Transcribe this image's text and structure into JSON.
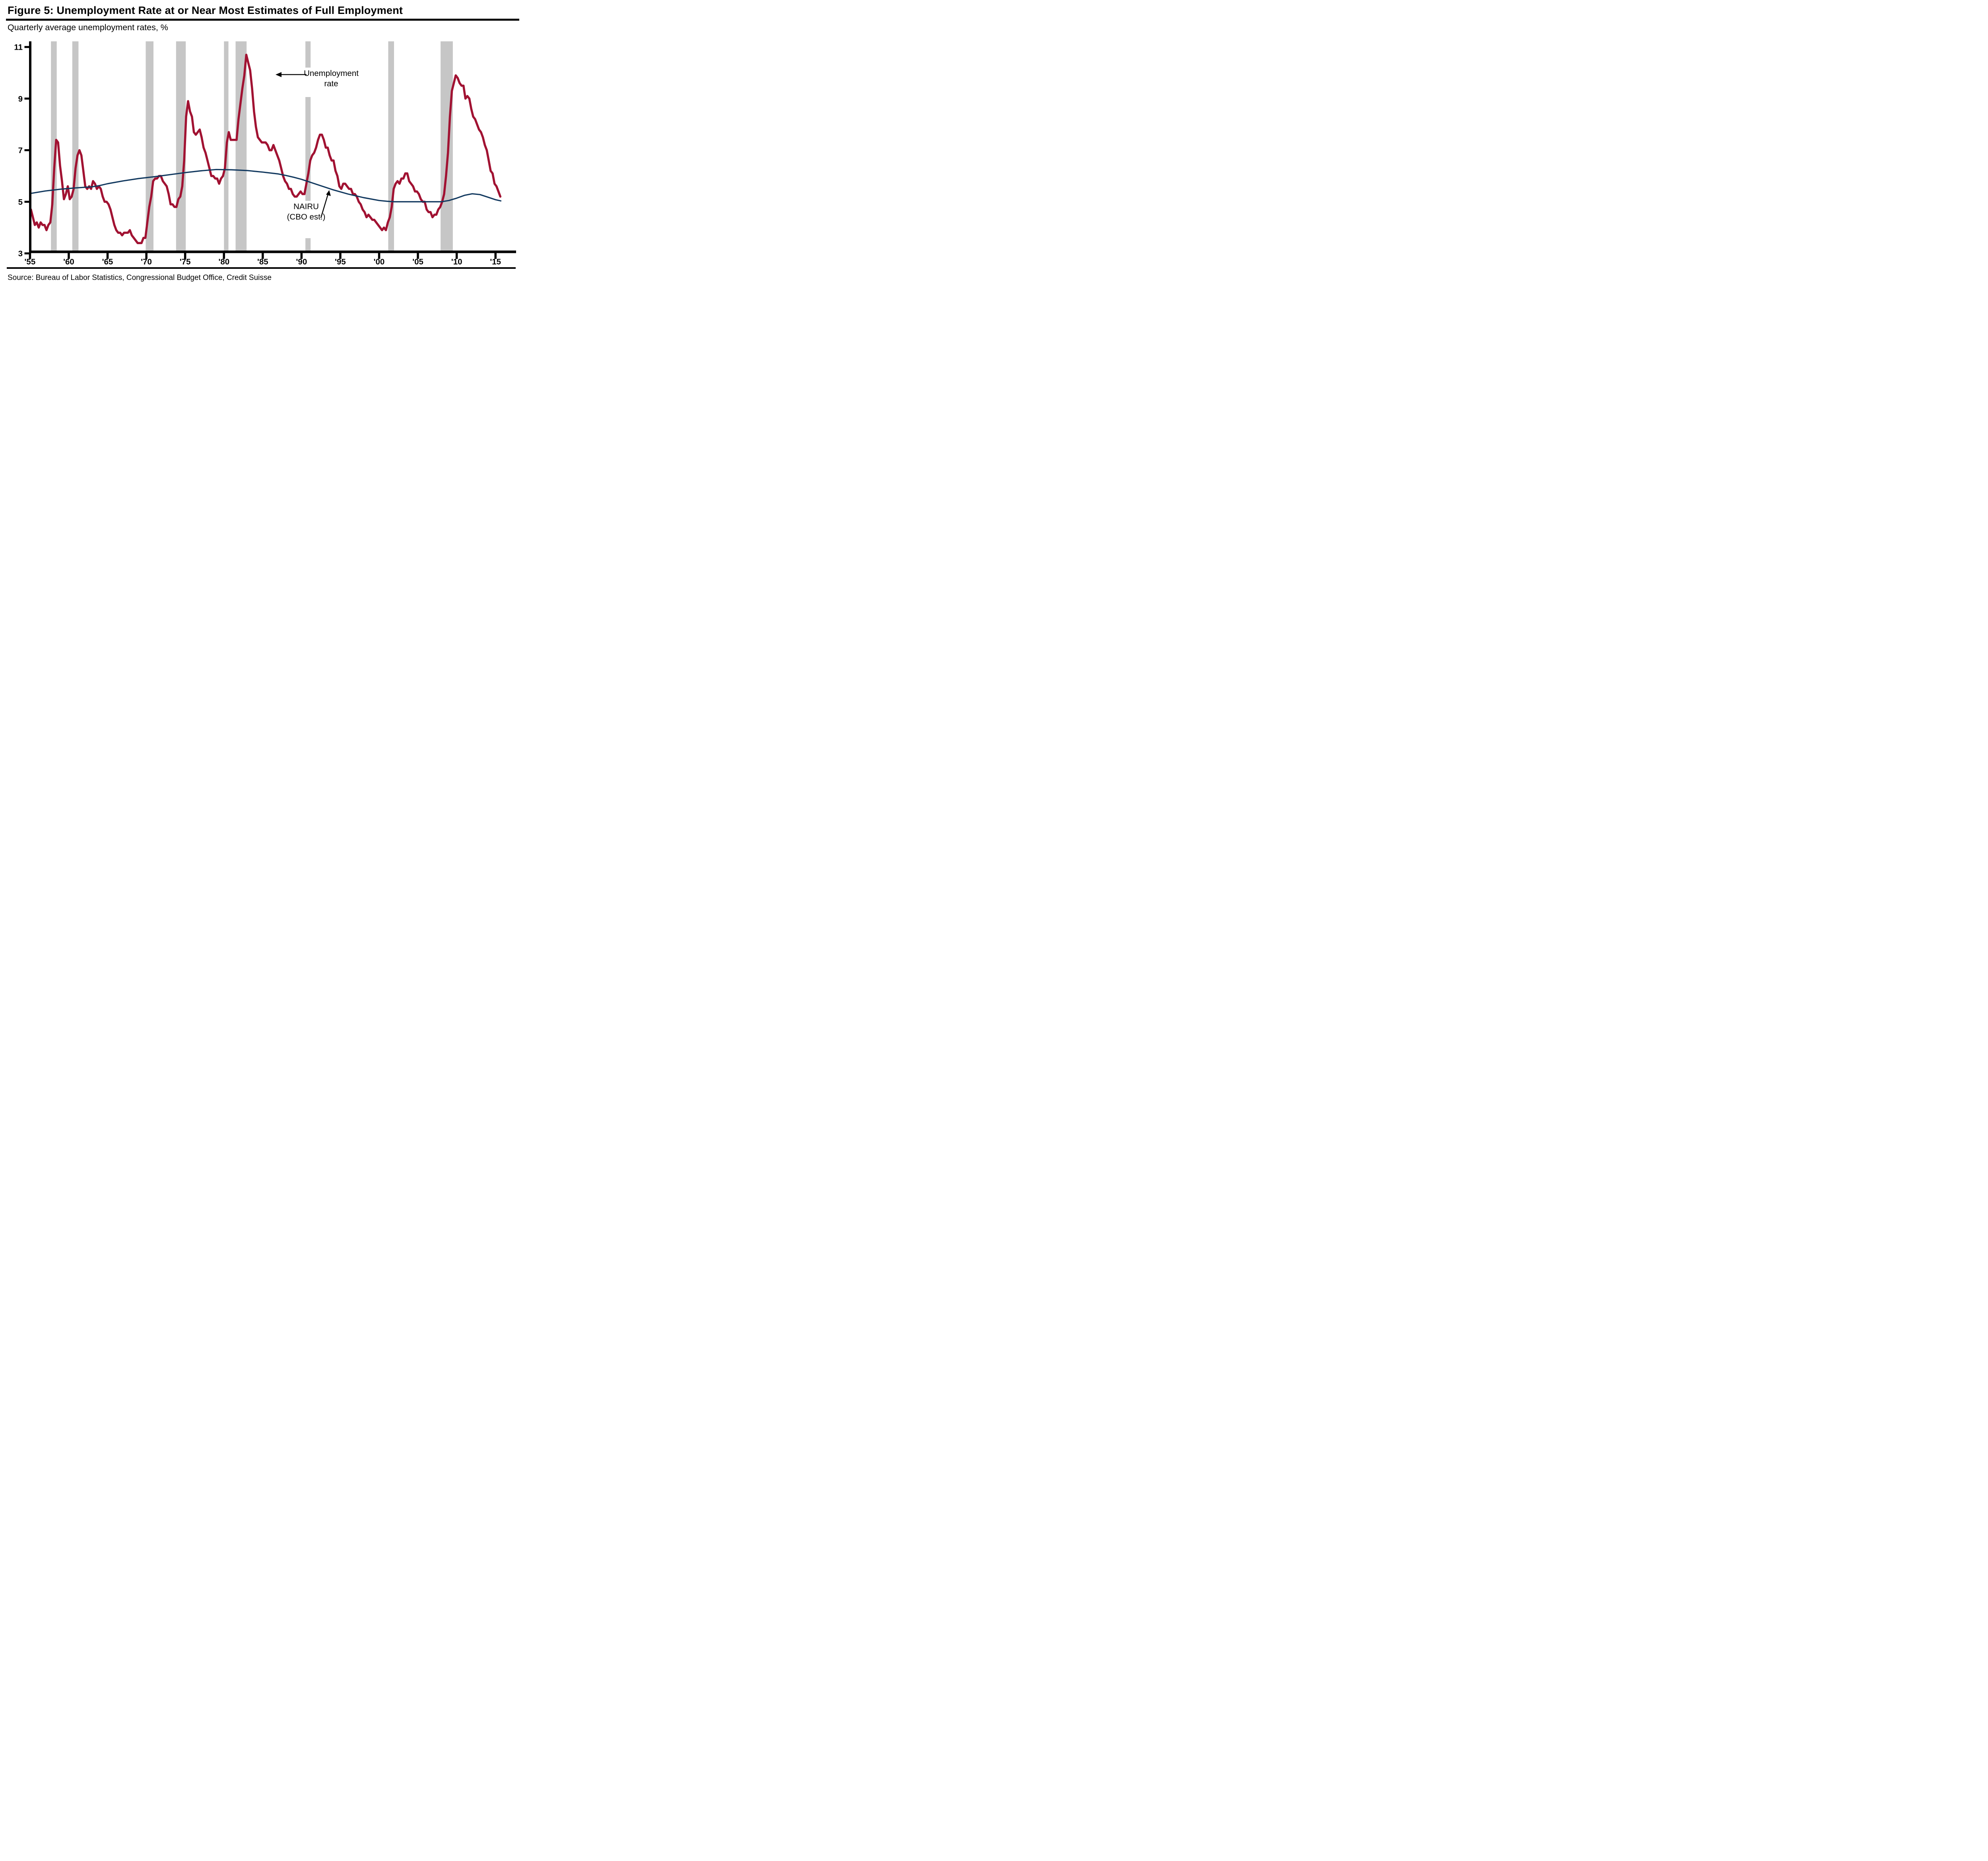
{
  "header": {
    "title": "Figure 5: Unemployment Rate at or Near Most Estimates of Full Employment",
    "subtitle": "Quarterly average unemployment rates, %"
  },
  "source_note": "Source: Bureau of Labor Statistics, Congressional Budget Office, Credit Suisse",
  "annotations": {
    "unemployment_line1": "Unemployment",
    "unemployment_line2": "rate",
    "nairu_line1": "NAIRU",
    "nairu_line2": "(CBO est.)"
  },
  "colors": {
    "unemployment_line": "#A11232",
    "nairu_line": "#12395F",
    "recession_band": "#C6C6C6",
    "axis": "#000000"
  },
  "chart_data": {
    "type": "line",
    "title": "Figure 5: Unemployment Rate at or Near Most Estimates of Full Employment",
    "xlabel": "",
    "ylabel": "Quarterly average unemployment rates, %",
    "ylim": [
      3,
      11
    ],
    "xlim": [
      1955,
      2016
    ],
    "grid": false,
    "legend_position": "inline-annotations",
    "yticks": [
      11,
      9,
      7,
      5,
      3
    ],
    "ytick_labels": [
      "11",
      "9",
      "7",
      "5",
      "3"
    ],
    "xticks": [
      1955,
      1960,
      1965,
      1970,
      1975,
      1980,
      1985,
      1990,
      1995,
      2000,
      2005,
      2010,
      2015
    ],
    "xtick_labels": [
      "'55",
      "'60",
      "'65",
      "'70",
      "'75",
      "'80",
      "'85",
      "'90",
      "'95",
      "'00",
      "'05",
      "'10",
      "'15"
    ],
    "recessions": [
      [
        1957.7,
        1958.45
      ],
      [
        1960.45,
        1961.25
      ],
      [
        1969.92,
        1970.92
      ],
      [
        1973.83,
        1975.08
      ],
      [
        1980.0,
        1980.58
      ],
      [
        1981.5,
        1982.92
      ],
      [
        1990.5,
        1991.17
      ],
      [
        2001.17,
        2001.92
      ],
      [
        2007.92,
        2009.5
      ]
    ],
    "series": [
      {
        "name": "Unemployment rate",
        "unit": "percent",
        "frequency": "quarterly",
        "start_year": 1955,
        "values": [
          4.7,
          4.4,
          4.1,
          4.2,
          4.0,
          4.2,
          4.1,
          4.1,
          3.9,
          4.1,
          4.2,
          4.9,
          6.3,
          7.4,
          7.3,
          6.4,
          5.8,
          5.1,
          5.3,
          5.6,
          5.1,
          5.2,
          5.5,
          6.3,
          6.8,
          7.0,
          6.8,
          6.2,
          5.6,
          5.5,
          5.6,
          5.5,
          5.8,
          5.7,
          5.5,
          5.6,
          5.5,
          5.2,
          5.0,
          5.0,
          4.9,
          4.7,
          4.4,
          4.1,
          3.9,
          3.8,
          3.8,
          3.7,
          3.8,
          3.8,
          3.8,
          3.9,
          3.7,
          3.6,
          3.5,
          3.4,
          3.4,
          3.4,
          3.6,
          3.6,
          4.2,
          4.8,
          5.2,
          5.8,
          5.9,
          5.9,
          6.0,
          6.0,
          5.8,
          5.7,
          5.6,
          5.3,
          4.9,
          4.9,
          4.8,
          4.8,
          5.1,
          5.2,
          5.6,
          6.6,
          8.3,
          8.9,
          8.5,
          8.3,
          7.7,
          7.6,
          7.7,
          7.8,
          7.5,
          7.1,
          6.9,
          6.6,
          6.3,
          6.0,
          6.0,
          5.9,
          5.9,
          5.7,
          5.9,
          6.0,
          6.3,
          7.3,
          7.7,
          7.4,
          7.4,
          7.4,
          7.4,
          8.2,
          8.8,
          9.4,
          9.9,
          10.7,
          10.4,
          10.1,
          9.4,
          8.5,
          7.9,
          7.5,
          7.4,
          7.3,
          7.3,
          7.3,
          7.2,
          7.0,
          7.0,
          7.2,
          7.0,
          6.8,
          6.6,
          6.3,
          6.0,
          5.8,
          5.7,
          5.5,
          5.5,
          5.3,
          5.2,
          5.2,
          5.3,
          5.4,
          5.3,
          5.3,
          5.7,
          6.1,
          6.6,
          6.8,
          6.9,
          7.1,
          7.4,
          7.6,
          7.6,
          7.4,
          7.1,
          7.1,
          6.8,
          6.6,
          6.6,
          6.2,
          6.0,
          5.6,
          5.5,
          5.7,
          5.7,
          5.6,
          5.5,
          5.5,
          5.3,
          5.3,
          5.2,
          5.0,
          4.9,
          4.7,
          4.6,
          4.4,
          4.5,
          4.4,
          4.3,
          4.3,
          4.2,
          4.1,
          4.0,
          3.9,
          4.0,
          3.9,
          4.2,
          4.4,
          4.8,
          5.5,
          5.7,
          5.8,
          5.7,
          5.9,
          5.9,
          6.1,
          6.1,
          5.8,
          5.7,
          5.6,
          5.4,
          5.4,
          5.3,
          5.1,
          5.0,
          5.0,
          4.7,
          4.6,
          4.6,
          4.4,
          4.5,
          4.5,
          4.7,
          4.8,
          5.0,
          5.3,
          6.0,
          6.9,
          8.3,
          9.3,
          9.6,
          9.9,
          9.8,
          9.6,
          9.5,
          9.5,
          9.0,
          9.1,
          9.0,
          8.6,
          8.3,
          8.2,
          8.0,
          7.8,
          7.7,
          7.5,
          7.2,
          7.0,
          6.6,
          6.2,
          6.1,
          5.7,
          5.6,
          5.4,
          5.2
        ]
      },
      {
        "name": "NAIRU (CBO est.)",
        "unit": "percent",
        "frequency": "annual-interpolated",
        "points": [
          [
            1955,
            5.32
          ],
          [
            1957,
            5.42
          ],
          [
            1959,
            5.49
          ],
          [
            1961,
            5.54
          ],
          [
            1963,
            5.58
          ],
          [
            1964,
            5.63
          ],
          [
            1965,
            5.7
          ],
          [
            1967,
            5.81
          ],
          [
            1969,
            5.9
          ],
          [
            1971,
            5.97
          ],
          [
            1973,
            6.05
          ],
          [
            1975,
            6.13
          ],
          [
            1977,
            6.2
          ],
          [
            1979,
            6.25
          ],
          [
            1981,
            6.24
          ],
          [
            1983,
            6.21
          ],
          [
            1985,
            6.15
          ],
          [
            1987,
            6.08
          ],
          [
            1988,
            6.02
          ],
          [
            1989,
            5.95
          ],
          [
            1990,
            5.87
          ],
          [
            1992,
            5.67
          ],
          [
            1994,
            5.47
          ],
          [
            1996,
            5.3
          ],
          [
            1998,
            5.16
          ],
          [
            2000,
            5.05
          ],
          [
            2001,
            5.02
          ],
          [
            2002,
            5.0
          ],
          [
            2008,
            5.0
          ],
          [
            2009,
            5.05
          ],
          [
            2010,
            5.14
          ],
          [
            2011,
            5.25
          ],
          [
            2012,
            5.31
          ],
          [
            2013,
            5.28
          ],
          [
            2014,
            5.18
          ],
          [
            2015,
            5.08
          ],
          [
            2015.75,
            5.03
          ]
        ]
      }
    ]
  }
}
